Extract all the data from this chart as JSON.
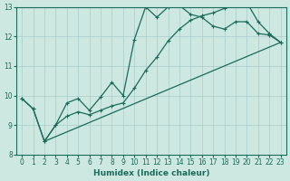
{
  "xlabel": "Humidex (Indice chaleur)",
  "xlim": [
    -0.5,
    23.5
  ],
  "ylim": [
    8,
    13
  ],
  "xticks": [
    0,
    1,
    2,
    3,
    4,
    5,
    6,
    7,
    8,
    9,
    10,
    11,
    12,
    13,
    14,
    15,
    16,
    17,
    18,
    19,
    20,
    21,
    22,
    23
  ],
  "yticks": [
    8,
    9,
    10,
    11,
    12,
    13
  ],
  "background_color": "#cce8e0",
  "grid_color": "#aacccc",
  "line_color": "#1a6b5a",
  "line1_x": [
    0,
    1,
    2,
    3,
    4,
    5,
    6,
    7,
    8,
    9,
    10,
    11,
    12,
    13,
    14,
    15,
    16,
    17,
    18,
    19,
    20,
    21,
    22,
    23
  ],
  "line1_y": [
    9.9,
    9.55,
    8.45,
    9.0,
    9.75,
    9.9,
    9.5,
    9.95,
    10.45,
    10.0,
    11.9,
    13.0,
    12.65,
    13.0,
    13.05,
    12.75,
    12.65,
    12.35,
    12.25,
    12.5,
    12.5,
    12.1,
    12.05,
    11.8
  ],
  "line2_x": [
    0,
    1,
    2,
    3,
    4,
    5,
    6,
    7,
    8,
    9,
    10,
    11,
    12,
    13,
    14,
    15,
    16,
    17,
    18,
    19,
    20,
    21,
    22,
    23
  ],
  "line2_y": [
    9.9,
    9.55,
    8.45,
    9.0,
    9.3,
    9.45,
    9.35,
    9.5,
    9.65,
    9.75,
    10.25,
    10.85,
    11.3,
    11.85,
    12.25,
    12.55,
    12.7,
    12.8,
    12.95,
    13.05,
    13.15,
    12.5,
    12.1,
    11.8
  ],
  "line3_x": [
    2,
    23
  ],
  "line3_y": [
    8.45,
    11.8
  ]
}
